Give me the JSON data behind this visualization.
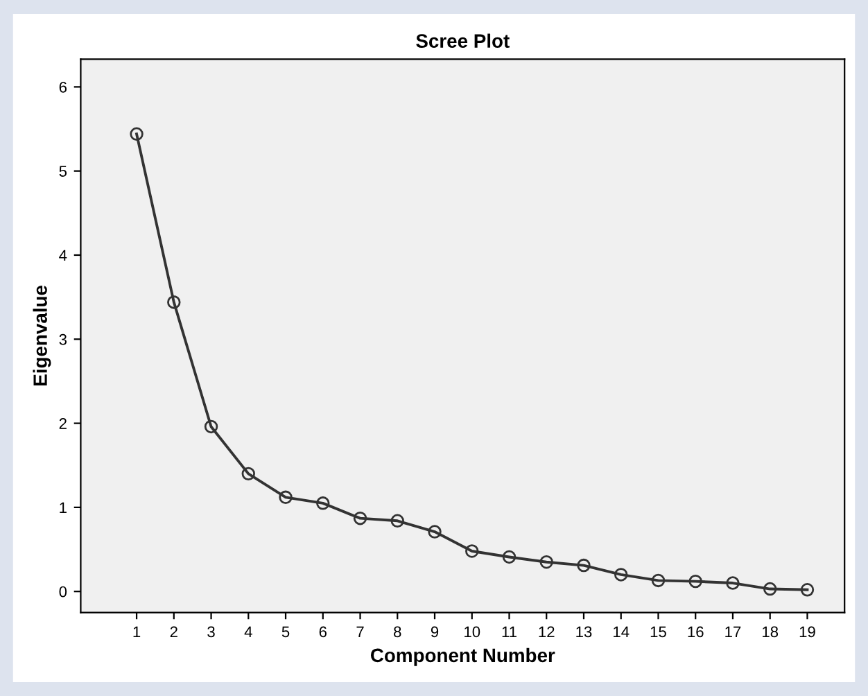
{
  "chart_data": {
    "type": "line",
    "title": "Scree Plot",
    "xlabel": "Component Number",
    "ylabel": "Eigenvalue",
    "categories": [
      "1",
      "2",
      "3",
      "4",
      "5",
      "6",
      "7",
      "8",
      "9",
      "10",
      "11",
      "12",
      "13",
      "14",
      "15",
      "16",
      "17",
      "18",
      "19"
    ],
    "series": [
      {
        "color": "#333333",
        "values": [
          5.44,
          3.44,
          1.96,
          1.4,
          1.12,
          1.05,
          0.87,
          0.84,
          0.71,
          0.48,
          0.41,
          0.35,
          0.31,
          0.2,
          0.13,
          0.12,
          0.1,
          0.03,
          0.02
        ]
      }
    ],
    "ylim": [
      -0.25,
      6.33
    ],
    "yticks": [
      0,
      1,
      2,
      3,
      4,
      5,
      6
    ],
    "marker": "circle",
    "line_style": "solid",
    "grid": false,
    "legend": false
  }
}
